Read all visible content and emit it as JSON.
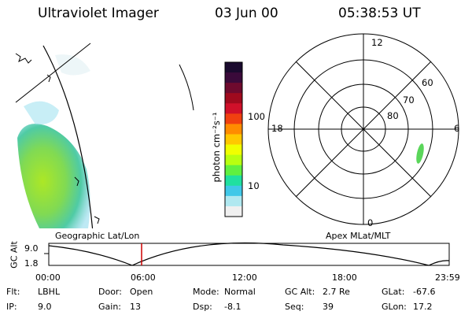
{
  "header": {
    "instrument": "Ultraviolet Imager",
    "date": "03 Jun 00",
    "time": "05:38:53 UT"
  },
  "colorbar": {
    "label": "photon cm⁻²s⁻¹",
    "ticks": [
      "100",
      "10"
    ],
    "colors": [
      "#1a0a2e",
      "#3a0a3a",
      "#6e0a2e",
      "#a00a1e",
      "#d0102a",
      "#f04010",
      "#ff8c00",
      "#ffc800",
      "#f0ff00",
      "#b8ff10",
      "#60f040",
      "#20e0a0",
      "#40c8e8",
      "#b0e8f0",
      "#f0f0f0"
    ]
  },
  "polar": {
    "hour_labels": {
      "top": "12",
      "left": "18",
      "right": "6",
      "bottom": "0"
    },
    "lat_labels": [
      "60",
      "70",
      "80"
    ]
  },
  "timeline": {
    "y_axis_label": "GC Alt",
    "y_max": "9.0",
    "y_min": "1.8",
    "left_title": "Geographic Lat/Lon",
    "right_title": "Apex MLat/MLT",
    "time_ticks": [
      "00:00",
      "06:00",
      "12:00",
      "18:00",
      "23:59"
    ],
    "current_marker_color": "#cc0000"
  },
  "info": {
    "rows": [
      [
        {
          "key": "Flt:",
          "val": "LBHL"
        },
        {
          "key": "Door:",
          "val": "Open"
        },
        {
          "key": "Mode:",
          "val": "Normal"
        },
        {
          "key": "GC Alt:",
          "val": "2.7 Re"
        },
        {
          "key": "GLat:",
          "val": "-67.6"
        }
      ],
      [
        {
          "key": "IP:",
          "val": "9.0"
        },
        {
          "key": "Gain:",
          "val": "13"
        },
        {
          "key": "Dsp:",
          "val": "-8.1"
        },
        {
          "key": "Seq:",
          "val": "39"
        },
        {
          "key": "GLon:",
          "val": "17.2"
        }
      ]
    ]
  }
}
